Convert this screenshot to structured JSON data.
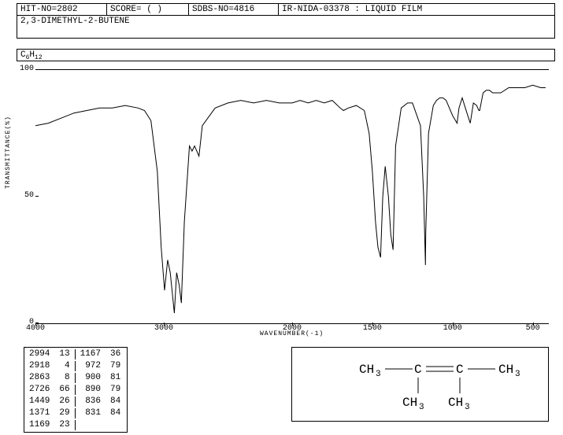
{
  "header": {
    "hit_no": "HIT-NO=2802",
    "score": "SCORE=  (  )",
    "sdbs_no": "SDBS-NO=4816",
    "ir_info": "IR-NIDA-03378 : LIQUID FILM"
  },
  "compound_name": "2,3-DIMETHYL-2-BUTENE",
  "formula_html": "C<sub>6</sub>H<sub>12</sub>",
  "chart": {
    "type": "line",
    "y_label": "TRANSMITTANCE(%)",
    "x_label": "WAVENUMBER(-1)",
    "ylim": [
      0,
      100
    ],
    "yticks": [
      0,
      50,
      100
    ],
    "xlim": [
      4000,
      400
    ],
    "xticks": [
      4000,
      3000,
      2000,
      1500,
      1000,
      500
    ],
    "x_scale_break": 2000,
    "line_color": "#000000",
    "line_width": 1,
    "background_color": "#ffffff",
    "data": [
      [
        4000,
        78
      ],
      [
        3900,
        79
      ],
      [
        3800,
        81
      ],
      [
        3700,
        83
      ],
      [
        3600,
        84
      ],
      [
        3500,
        85
      ],
      [
        3400,
        85
      ],
      [
        3300,
        86
      ],
      [
        3200,
        85
      ],
      [
        3150,
        84
      ],
      [
        3100,
        80
      ],
      [
        3050,
        60
      ],
      [
        3020,
        30
      ],
      [
        2994,
        13
      ],
      [
        2970,
        25
      ],
      [
        2950,
        20
      ],
      [
        2918,
        4
      ],
      [
        2900,
        20
      ],
      [
        2880,
        15
      ],
      [
        2863,
        8
      ],
      [
        2840,
        40
      ],
      [
        2800,
        70
      ],
      [
        2780,
        68
      ],
      [
        2760,
        70
      ],
      [
        2726,
        66
      ],
      [
        2700,
        78
      ],
      [
        2600,
        85
      ],
      [
        2500,
        87
      ],
      [
        2400,
        88
      ],
      [
        2300,
        87
      ],
      [
        2200,
        88
      ],
      [
        2100,
        87
      ],
      [
        2000,
        87
      ],
      [
        1950,
        88
      ],
      [
        1900,
        87
      ],
      [
        1850,
        88
      ],
      [
        1800,
        87
      ],
      [
        1750,
        88
      ],
      [
        1700,
        85
      ],
      [
        1680,
        84
      ],
      [
        1650,
        85
      ],
      [
        1600,
        86
      ],
      [
        1550,
        84
      ],
      [
        1520,
        75
      ],
      [
        1500,
        60
      ],
      [
        1480,
        40
      ],
      [
        1465,
        30
      ],
      [
        1449,
        26
      ],
      [
        1435,
        50
      ],
      [
        1420,
        62
      ],
      [
        1400,
        50
      ],
      [
        1385,
        35
      ],
      [
        1371,
        29
      ],
      [
        1355,
        70
      ],
      [
        1320,
        85
      ],
      [
        1280,
        87
      ],
      [
        1250,
        87
      ],
      [
        1200,
        78
      ],
      [
        1180,
        50
      ],
      [
        1169,
        23
      ],
      [
        1167,
        36
      ],
      [
        1150,
        75
      ],
      [
        1120,
        86
      ],
      [
        1100,
        88
      ],
      [
        1080,
        89
      ],
      [
        1060,
        89
      ],
      [
        1040,
        88
      ],
      [
        1020,
        85
      ],
      [
        1000,
        82
      ],
      [
        972,
        79
      ],
      [
        960,
        85
      ],
      [
        940,
        89
      ],
      [
        920,
        85
      ],
      [
        900,
        81
      ],
      [
        890,
        79
      ],
      [
        870,
        87
      ],
      [
        850,
        86
      ],
      [
        836,
        84
      ],
      [
        831,
        84
      ],
      [
        810,
        91
      ],
      [
        790,
        92
      ],
      [
        770,
        92
      ],
      [
        750,
        91
      ],
      [
        700,
        91
      ],
      [
        650,
        93
      ],
      [
        600,
        93
      ],
      [
        550,
        93
      ],
      [
        500,
        94
      ],
      [
        450,
        93
      ],
      [
        420,
        93
      ]
    ]
  },
  "peak_table": {
    "rows_left": [
      [
        "2994",
        "13"
      ],
      [
        "2918",
        "4"
      ],
      [
        "2863",
        "8"
      ],
      [
        "2726",
        "66"
      ],
      [
        "1449",
        "26"
      ],
      [
        "1371",
        "29"
      ],
      [
        "1169",
        "23"
      ]
    ],
    "rows_right": [
      [
        "1167",
        "36"
      ],
      [
        "972",
        "79"
      ],
      [
        "900",
        "81"
      ],
      [
        "890",
        "79"
      ],
      [
        "836",
        "84"
      ],
      [
        "831",
        "84"
      ]
    ]
  },
  "structure": {
    "groups": [
      "CH3",
      "C",
      "C",
      "CH3",
      "CH3",
      "CH3"
    ],
    "label_font_size": 14
  }
}
